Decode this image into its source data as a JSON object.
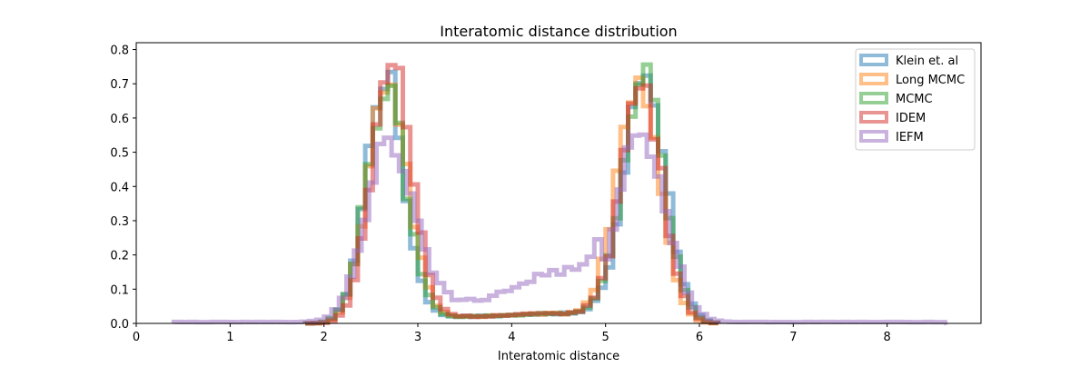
{
  "chart_data": {
    "type": "histogram-step",
    "title": "Interatomic distance distribution",
    "xlabel": "Interatomic distance",
    "ylabel": "",
    "xlim": [
      0,
      9.0
    ],
    "ylim": [
      0,
      0.82
    ],
    "xticks": [
      0,
      1,
      2,
      3,
      4,
      5,
      6,
      7,
      8
    ],
    "yticks": [
      0.0,
      0.1,
      0.2,
      0.3,
      0.4,
      0.5,
      0.6,
      0.7,
      0.8
    ],
    "legend_position": "top-right",
    "grid": false,
    "series": [
      {
        "name": "Klein et. al",
        "color": "#1f77b4",
        "bin_range": [
          1.8,
          6.2
        ],
        "peaks": [
          {
            "center": 2.65,
            "sigma": 0.2,
            "height": 0.73
          },
          {
            "center": 5.42,
            "sigma": 0.22,
            "height": 0.74
          }
        ],
        "floor": 0.02
      },
      {
        "name": "Long MCMC",
        "color": "#ff7f0e",
        "bin_range": [
          1.8,
          6.2
        ],
        "peaks": [
          {
            "center": 2.68,
            "sigma": 0.21,
            "height": 0.72
          },
          {
            "center": 5.35,
            "sigma": 0.22,
            "height": 0.73
          }
        ],
        "floor": 0.02
      },
      {
        "name": "MCMC",
        "color": "#2ca02c",
        "bin_range": [
          1.8,
          6.2
        ],
        "peaks": [
          {
            "center": 2.66,
            "sigma": 0.21,
            "height": 0.68
          },
          {
            "center": 5.4,
            "sigma": 0.22,
            "height": 0.72
          }
        ],
        "floor": 0.02
      },
      {
        "name": "IDEM",
        "color": "#d62728",
        "bin_range": [
          1.8,
          6.2
        ],
        "peaks": [
          {
            "center": 2.72,
            "sigma": 0.21,
            "height": 0.77
          },
          {
            "center": 5.38,
            "sigma": 0.22,
            "height": 0.7
          }
        ],
        "floor": 0.02
      },
      {
        "name": "IEFM",
        "color": "#9467bd",
        "bin_range": [
          0.4,
          8.6
        ],
        "peaks": [
          {
            "center": 2.7,
            "sigma": 0.25,
            "height": 0.54
          },
          {
            "center": 5.38,
            "sigma": 0.26,
            "height": 0.56
          }
        ],
        "floor": 0.06
      }
    ]
  }
}
